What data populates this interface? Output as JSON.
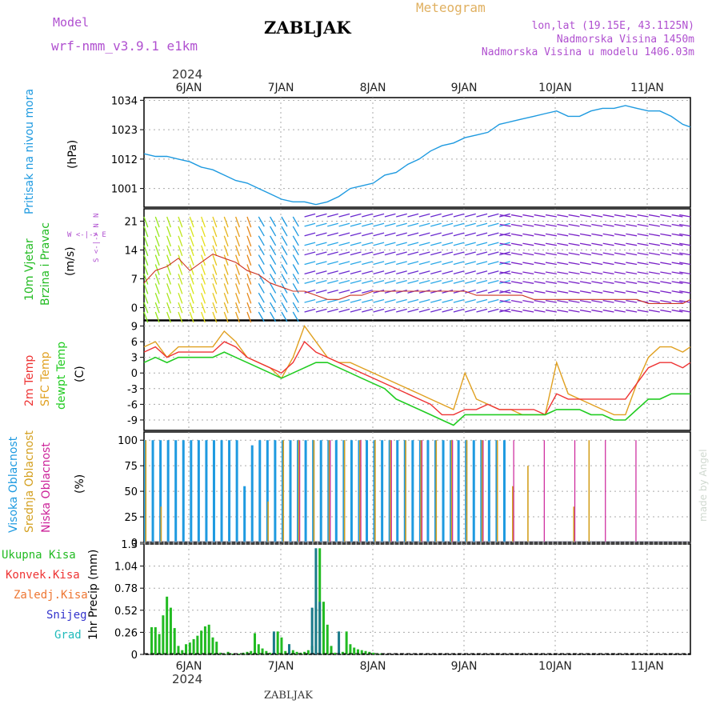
{
  "header": {
    "model_label": "Model",
    "model_name": "wrf-nmm_v3.9.1 e1km",
    "title": "ZABLJAK",
    "meteogram": "Meteogram",
    "lonlat": "lon,lat (19.15E, 43.1125N)",
    "altitude": "Nadmorska Visina 1450m",
    "model_altitude": "Nadmorska Visina u modelu 1406.03m",
    "bottom_title": "ZABLJAK",
    "watermark": "made by Angel"
  },
  "colors": {
    "pressure": "#1e9ae0",
    "wind_label": "#22bb22",
    "temp2m": "#ee3333",
    "sfc": "#e0a020",
    "dewpt": "#22cc22",
    "high_cloud": "#1e9ae0",
    "mid_cloud": "#d4a020",
    "low_cloud": "#cc2299",
    "total": "#22bb22",
    "conv": "#ee3333",
    "frozen": "#ee7733",
    "snow": "#3333cc",
    "grad": "#22bbbb",
    "purple": "#b050d0"
  },
  "time_axis": {
    "year": "2024",
    "days": [
      "6JAN",
      "7JAN",
      "8JAN",
      "9JAN",
      "10JAN",
      "11JAN"
    ]
  },
  "panels": {
    "pressure": {
      "label": "Pritisak na nivou mora",
      "unit": "(hPa)",
      "ticks": [
        "1034",
        "1023",
        "1012",
        "1001"
      ]
    },
    "wind": {
      "label1": "10m Vjetar",
      "label2": "Brzina i Pravac",
      "unit": "(m/s)",
      "ticks": [
        "21",
        "14",
        "7",
        "0"
      ],
      "compass": "N",
      "compass_ws": "W <-|-> E",
      "compass_s": "S"
    },
    "temp": {
      "label_2m": "2m Temp",
      "label_sfc": "SFC Temp",
      "label_dew": "dewpt Temp",
      "unit": "(C)",
      "ticks": [
        "9",
        "6",
        "3",
        "0",
        "-3",
        "-6",
        "-9"
      ]
    },
    "cloud": {
      "label_high": "Visoka Oblacnost",
      "label_mid": "Srednja Oblacnost",
      "label_low": "Niska Oblacnost",
      "unit": "(%)",
      "ticks": [
        "100",
        "75",
        "50",
        "25",
        "0"
      ]
    },
    "precip": {
      "unit": "1hr Precip (mm)",
      "ticks": [
        "1.3",
        "1.04",
        "0.78",
        "0.52",
        "0.26",
        "0"
      ],
      "legend": [
        "Ukupna Kisa",
        "Konvek.Kisa",
        "Zaledj.Kisa",
        "Snijeg",
        "Grad"
      ]
    }
  },
  "chart_data": [
    {
      "type": "line",
      "title": "Pritisak na nivou mora",
      "ylabel": "(hPa)",
      "ylim": [
        994,
        1035
      ],
      "xlim": [
        0,
        143
      ],
      "x_unit": "hours since 2024-01-05 18:00",
      "series": [
        {
          "name": "Pritisak na nivou mora",
          "x": [
            0,
            3,
            6,
            9,
            12,
            15,
            18,
            21,
            24,
            27,
            30,
            33,
            36,
            39,
            42,
            45,
            48,
            51,
            54,
            57,
            60,
            63,
            66,
            69,
            72,
            75,
            78,
            81,
            84,
            87,
            90,
            93,
            96,
            99,
            102,
            105,
            108,
            111,
            114,
            117,
            120,
            123,
            126,
            129,
            132,
            135,
            138,
            141,
            143
          ],
          "values": [
            1014,
            1013,
            1013,
            1012,
            1011,
            1009,
            1008,
            1006,
            1004,
            1003,
            1001,
            999,
            997,
            996,
            996,
            995,
            996,
            998,
            1001,
            1002,
            1003,
            1006,
            1007,
            1010,
            1012,
            1015,
            1017,
            1018,
            1020,
            1021,
            1022,
            1025,
            1026,
            1027,
            1028,
            1029,
            1030,
            1028,
            1028,
            1030,
            1031,
            1031,
            1032,
            1031,
            1030,
            1030,
            1028,
            1025,
            1024
          ]
        }
      ]
    },
    {
      "type": "line",
      "title": "10m Vjetar Brzina i Pravac",
      "ylabel": "(m/s)",
      "ylim": [
        -3,
        24
      ],
      "series": [
        {
          "name": "10m Vjetar",
          "x": [
            0,
            3,
            6,
            9,
            12,
            15,
            18,
            21,
            24,
            27,
            30,
            33,
            36,
            39,
            42,
            45,
            48,
            51,
            54,
            57,
            60,
            63,
            66,
            69,
            72,
            75,
            78,
            81,
            84,
            87,
            90,
            93,
            96,
            99,
            102,
            105,
            108,
            111,
            114,
            117,
            120,
            123,
            126,
            129,
            132,
            135,
            138,
            141,
            143
          ],
          "values": [
            6,
            9,
            10,
            12,
            9,
            11,
            13,
            12,
            11,
            9,
            8,
            6,
            5,
            4,
            4,
            3,
            2,
            2,
            3,
            3,
            4,
            4,
            4,
            4,
            4,
            4,
            4,
            4,
            4,
            3,
            3,
            3,
            3,
            3,
            2,
            2,
            2,
            2,
            2,
            2,
            2,
            2,
            2,
            2,
            1,
            1,
            1,
            1,
            2
          ]
        }
      ]
    },
    {
      "type": "line",
      "title": "2m Temp / SFC Temp / dewpt Temp",
      "ylabel": "(C)",
      "ylim": [
        -11,
        10
      ],
      "series": [
        {
          "name": "2m Temp",
          "x": [
            0,
            3,
            6,
            9,
            12,
            15,
            18,
            21,
            24,
            27,
            30,
            33,
            36,
            39,
            42,
            45,
            48,
            51,
            54,
            57,
            60,
            63,
            66,
            69,
            72,
            75,
            78,
            81,
            84,
            87,
            90,
            93,
            96,
            99,
            102,
            105,
            108,
            111,
            114,
            117,
            120,
            123,
            126,
            129,
            132,
            135,
            138,
            141,
            143
          ],
          "values": [
            4,
            5,
            3,
            4,
            4,
            4,
            4,
            6,
            5,
            3,
            2,
            1,
            0,
            2,
            6,
            4,
            3,
            2,
            1,
            0,
            -1,
            -2,
            -3,
            -4,
            -5,
            -6,
            -8,
            -8,
            -7,
            -7,
            -6,
            -7,
            -7,
            -7,
            -7,
            -8,
            -4,
            -5,
            -5,
            -5,
            -5,
            -5,
            -5,
            -2,
            1,
            2,
            2,
            1,
            2
          ]
        },
        {
          "name": "SFC Temp",
          "x": [
            0,
            3,
            6,
            9,
            12,
            15,
            18,
            21,
            24,
            27,
            30,
            33,
            36,
            39,
            42,
            45,
            48,
            51,
            54,
            57,
            60,
            63,
            66,
            69,
            72,
            75,
            78,
            81,
            84,
            87,
            90,
            93,
            96,
            99,
            102,
            105,
            108,
            111,
            114,
            117,
            120,
            123,
            126,
            129,
            132,
            135,
            138,
            141,
            143
          ],
          "values": [
            5,
            6,
            3,
            5,
            5,
            5,
            5,
            8,
            6,
            3,
            2,
            1,
            -1,
            3,
            9,
            6,
            3,
            2,
            2,
            1,
            0,
            -1,
            -2,
            -3,
            -4,
            -5,
            -6,
            -7,
            0,
            -5,
            -6,
            -7,
            -7,
            -8,
            -8,
            -8,
            2,
            -4,
            -5,
            -6,
            -7,
            -8,
            -8,
            -2,
            3,
            5,
            5,
            4,
            5
          ]
        },
        {
          "name": "dewpt Temp",
          "x": [
            0,
            3,
            6,
            9,
            12,
            15,
            18,
            21,
            24,
            27,
            30,
            33,
            36,
            39,
            42,
            45,
            48,
            51,
            54,
            57,
            60,
            63,
            66,
            69,
            72,
            75,
            78,
            81,
            84,
            87,
            90,
            93,
            96,
            99,
            102,
            105,
            108,
            111,
            114,
            117,
            120,
            123,
            126,
            129,
            132,
            135,
            138,
            141,
            143
          ],
          "values": [
            2,
            3,
            2,
            3,
            3,
            3,
            3,
            4,
            3,
            2,
            1,
            0,
            -1,
            0,
            1,
            2,
            2,
            1,
            0,
            -1,
            -2,
            -3,
            -5,
            -6,
            -7,
            -8,
            -9,
            -10,
            -8,
            -8,
            -8,
            -8,
            -8,
            -8,
            -8,
            -8,
            -7,
            -7,
            -7,
            -8,
            -8,
            -9,
            -9,
            -7,
            -5,
            -5,
            -4,
            -4,
            -4
          ]
        }
      ]
    },
    {
      "type": "bar",
      "title": "Oblacnost",
      "ylabel": "(%)",
      "ylim": [
        0,
        100
      ],
      "series": [
        {
          "name": "Visoka Oblacnost",
          "x": [
            0,
            2,
            4,
            6,
            8,
            10,
            12,
            14,
            16,
            18,
            20,
            22,
            24,
            26,
            28,
            30,
            32,
            34,
            36,
            38,
            40,
            42,
            44,
            46,
            48,
            50,
            52,
            54,
            56,
            58,
            60,
            62,
            64,
            66,
            68,
            70,
            72,
            74,
            76,
            78,
            80,
            82,
            84,
            86,
            88,
            90,
            92,
            94,
            96
          ],
          "values": [
            100,
            100,
            100,
            100,
            100,
            100,
            100,
            100,
            100,
            100,
            100,
            100,
            100,
            55,
            95,
            100,
            100,
            100,
            100,
            100,
            100,
            100,
            100,
            100,
            100,
            100,
            100,
            100,
            100,
            100,
            100,
            100,
            100,
            100,
            100,
            100,
            100,
            100,
            100,
            100,
            100,
            100,
            100,
            100,
            100,
            100,
            100,
            100,
            0
          ]
        },
        {
          "name": "Srednja Oblacnost",
          "x": [
            0,
            4,
            8,
            12,
            16,
            20,
            24,
            28,
            32,
            36,
            40,
            44,
            48,
            52,
            56,
            60,
            64,
            68,
            72,
            76,
            80,
            84,
            88,
            92,
            96,
            100,
            104,
            108,
            112,
            116,
            120
          ],
          "values": [
            100,
            35,
            0,
            0,
            0,
            0,
            0,
            0,
            40,
            100,
            100,
            100,
            100,
            100,
            100,
            100,
            100,
            100,
            100,
            100,
            100,
            100,
            100,
            100,
            55,
            75,
            0,
            0,
            35,
            100,
            0
          ]
        },
        {
          "name": "Niska Oblacnost",
          "x": [
            0,
            8,
            16,
            24,
            32,
            40,
            48,
            56,
            64,
            72,
            80,
            88,
            96,
            104,
            112,
            120,
            128,
            136
          ],
          "values": [
            0,
            0,
            0,
            0,
            0,
            100,
            100,
            100,
            100,
            100,
            100,
            100,
            100,
            100,
            100,
            100,
            100,
            0
          ]
        }
      ]
    },
    {
      "type": "bar",
      "title": "1hr Precip",
      "ylabel": "1hr Precip (mm)",
      "ylim": [
        0,
        1.3
      ],
      "series": [
        {
          "name": "Ukupna Kisa",
          "x": [
            2,
            3,
            4,
            5,
            6,
            7,
            8,
            9,
            10,
            11,
            12,
            13,
            14,
            15,
            16,
            17,
            18,
            19,
            20,
            21,
            22,
            23,
            24,
            25,
            26,
            27,
            28,
            29,
            30,
            31,
            32,
            33,
            34,
            35,
            36,
            37,
            38,
            39,
            40,
            41,
            42,
            43,
            44,
            45,
            46,
            47,
            48,
            49,
            50,
            51,
            52,
            53,
            54,
            55,
            56,
            57,
            58,
            59,
            60,
            61,
            62,
            63,
            64,
            65,
            66
          ],
          "values": [
            0.32,
            0.32,
            0.24,
            0.46,
            0.68,
            0.55,
            0.31,
            0.1,
            0.05,
            0.12,
            0.14,
            0.18,
            0.22,
            0.28,
            0.33,
            0.35,
            0.2,
            0.15,
            0.02,
            0.01,
            0.03,
            0.01,
            0.0,
            0.01,
            0.02,
            0.03,
            0.04,
            0.25,
            0.12,
            0.07,
            0.04,
            0.02,
            0.05,
            0.27,
            0.2,
            0.04,
            0.12,
            0.05,
            0.03,
            0.02,
            0.03,
            0.05,
            0.1,
            0.55,
            1.25,
            0.62,
            0.35,
            0.1,
            0.02,
            0.01,
            0.03,
            0.27,
            0.12,
            0.08,
            0.06,
            0.05,
            0.04,
            0.03,
            0.02,
            0.01,
            0.01,
            0.0,
            0.0,
            0.0,
            0.0
          ]
        },
        {
          "name": "Snijeg",
          "x": [
            34,
            38,
            44,
            45,
            46,
            51
          ],
          "values": [
            0.27,
            0.12,
            0.55,
            1.25,
            0.62,
            0.27
          ]
        }
      ]
    }
  ]
}
